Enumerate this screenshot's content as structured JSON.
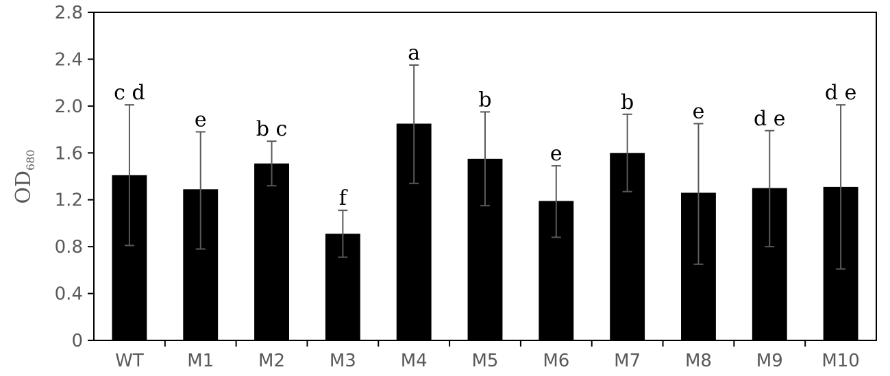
{
  "chart_data": {
    "type": "bar",
    "categories": [
      "WT",
      "M1",
      "M2",
      "M3",
      "M4",
      "M5",
      "M6",
      "M7",
      "M8",
      "M9",
      "M10"
    ],
    "values": [
      1.41,
      1.29,
      1.51,
      0.91,
      1.85,
      1.55,
      1.19,
      1.6,
      1.26,
      1.3,
      1.31
    ],
    "error_upper": [
      2.01,
      1.78,
      1.7,
      1.11,
      2.35,
      1.95,
      1.49,
      1.93,
      1.85,
      1.79,
      2.01
    ],
    "error_lower": [
      0.81,
      0.78,
      1.32,
      0.71,
      1.34,
      1.15,
      0.88,
      1.27,
      0.65,
      0.8,
      0.61
    ],
    "significance_letters": [
      "c d",
      "e",
      "b c",
      "f",
      "a",
      "b",
      "e",
      "b",
      "e",
      "d e",
      "d e"
    ],
    "ylabel": {
      "main": "OD",
      "subscript": "680"
    },
    "y_ticks": [
      "0",
      "0.4",
      "0.8",
      "1.2",
      "1.6",
      "2.0",
      "2.4",
      "2.8"
    ],
    "ylim": [
      0,
      2.8
    ],
    "bar_color": "#000000",
    "error_bar_color": "#595959",
    "axis_color": "#000000",
    "text_color": "#595959",
    "grid": false,
    "legend": false
  }
}
